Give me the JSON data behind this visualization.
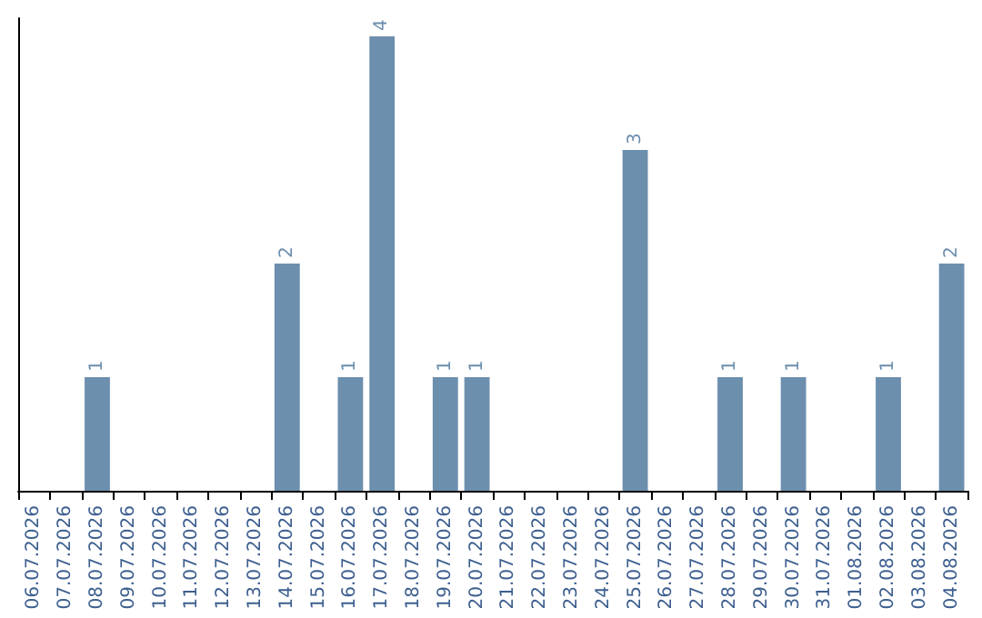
{
  "chart_data": {
    "type": "bar",
    "categories": [
      "06.07.2026",
      "07.07.2026",
      "08.07.2026",
      "09.07.2026",
      "10.07.2026",
      "11.07.2026",
      "12.07.2026",
      "13.07.2026",
      "14.07.2026",
      "15.07.2026",
      "16.07.2026",
      "17.07.2026",
      "18.07.2026",
      "19.07.2026",
      "20.07.2026",
      "21.07.2026",
      "22.07.2026",
      "23.07.2026",
      "24.07.2026",
      "25.07.2026",
      "26.07.2026",
      "27.07.2026",
      "28.07.2026",
      "29.07.2026",
      "30.07.2026",
      "31.07.2026",
      "01.08.2026",
      "02.08.2026",
      "03.08.2026",
      "04.08.2026"
    ],
    "values": [
      0,
      0,
      1,
      0,
      0,
      0,
      0,
      0,
      2,
      0,
      1,
      4,
      0,
      1,
      1,
      0,
      0,
      0,
      0,
      3,
      0,
      0,
      1,
      0,
      1,
      0,
      0,
      1,
      0,
      2
    ],
    "value_labels": [
      null,
      null,
      "1",
      null,
      null,
      null,
      null,
      null,
      "2",
      null,
      "1",
      "4",
      null,
      "1",
      "1",
      null,
      null,
      null,
      null,
      "3",
      null,
      null,
      "1",
      null,
      "1",
      null,
      null,
      "1",
      null,
      "2"
    ],
    "color": "#6d8fae",
    "grid": false,
    "tick_labels": "x"
  }
}
